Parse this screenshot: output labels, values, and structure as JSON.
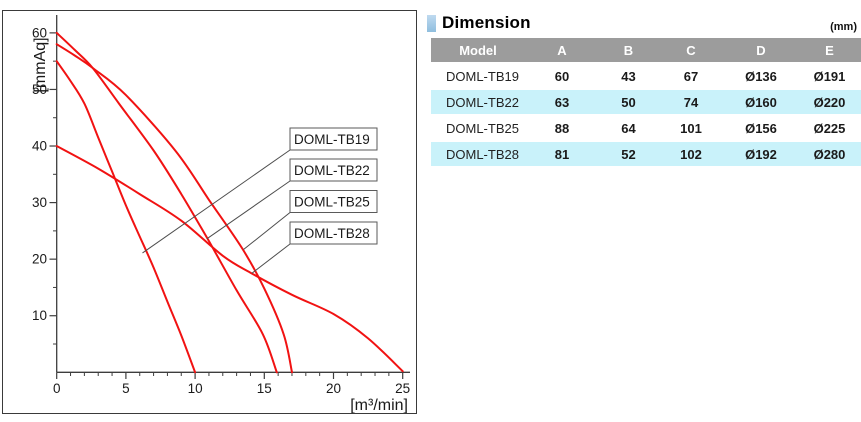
{
  "chart_data": {
    "type": "line",
    "title": "",
    "xlabel": "[m³/min]",
    "ylabel": "[mmAq]",
    "xlim": [
      0,
      25.5
    ],
    "ylim": [
      0,
      63
    ],
    "x_major_ticks": [
      0,
      5,
      10,
      15,
      20,
      25
    ],
    "x_minor_step": 1,
    "y_major_ticks": [
      10,
      20,
      30,
      40,
      50,
      60
    ],
    "y_minor_step": 5,
    "grid": false,
    "legend_position": "callout-boxes-right",
    "curve_color": "#f11212",
    "axis_color": "#3d3d3d",
    "series": [
      {
        "name": "DOML-TB19",
        "points": [
          [
            0,
            55
          ],
          [
            1,
            51.5
          ],
          [
            2,
            47.5
          ],
          [
            3,
            41.5
          ],
          [
            4,
            35.5
          ],
          [
            5,
            29.5
          ],
          [
            6,
            24
          ],
          [
            7,
            18.5
          ],
          [
            8,
            12.5
          ],
          [
            9,
            6.5
          ],
          [
            10,
            0
          ]
        ]
      },
      {
        "name": "DOML-TB22",
        "points": [
          [
            0,
            60
          ],
          [
            1.3,
            57
          ],
          [
            2.6,
            53.8
          ],
          [
            4.5,
            47.5
          ],
          [
            7,
            39.2
          ],
          [
            9,
            31.5
          ],
          [
            10.9,
            23.6
          ],
          [
            13,
            14.5
          ],
          [
            14.9,
            6.7
          ],
          [
            15.9,
            0
          ]
        ]
      },
      {
        "name": "DOML-TB25",
        "points": [
          [
            0,
            58
          ],
          [
            1.3,
            56
          ],
          [
            2.6,
            53.8
          ],
          [
            5,
            49
          ],
          [
            8.6,
            39.1
          ],
          [
            11,
            30.5
          ],
          [
            13.4,
            21.9
          ],
          [
            15,
            14.8
          ],
          [
            16.4,
            6.7
          ],
          [
            17,
            0
          ]
        ]
      },
      {
        "name": "DOML-TB28",
        "points": [
          [
            0,
            40
          ],
          [
            3,
            36
          ],
          [
            6,
            31.5
          ],
          [
            9,
            26.8
          ],
          [
            12,
            20.6
          ],
          [
            14,
            17.6
          ],
          [
            17,
            13.7
          ],
          [
            20,
            10.3
          ],
          [
            22.5,
            6
          ],
          [
            25,
            0.2
          ]
        ]
      }
    ],
    "callouts": [
      {
        "label": "DOML-TB19",
        "target": [
          6.2,
          21.1
        ]
      },
      {
        "label": "DOML-TB22",
        "target": [
          10.85,
          23.6
        ]
      },
      {
        "label": "DOML-TB25",
        "target": [
          13.5,
          21.7
        ]
      },
      {
        "label": "DOML-TB28",
        "target": [
          14.1,
          17.5
        ]
      }
    ]
  },
  "table": {
    "title": "Dimension",
    "unit": "(mm)",
    "columns": [
      "Model",
      "A",
      "B",
      "C",
      "D",
      "E"
    ],
    "rows": [
      {
        "model": "DOML-TB19",
        "values": [
          "60",
          "43",
          "67",
          "Ø136",
          "Ø191"
        ],
        "highlight": false
      },
      {
        "model": "DOML-TB22",
        "values": [
          "63",
          "50",
          "74",
          "Ø160",
          "Ø220"
        ],
        "highlight": true
      },
      {
        "model": "DOML-TB25",
        "values": [
          "88",
          "64",
          "101",
          "Ø156",
          "Ø225"
        ],
        "highlight": false
      },
      {
        "model": "DOML-TB28",
        "values": [
          "81",
          "52",
          "102",
          "Ø192",
          "Ø280"
        ],
        "highlight": true
      }
    ],
    "colors": {
      "header_bg": "#9c9c9c",
      "highlight_bg": "#c9f2fa",
      "bullet": "#a7cce9"
    }
  }
}
